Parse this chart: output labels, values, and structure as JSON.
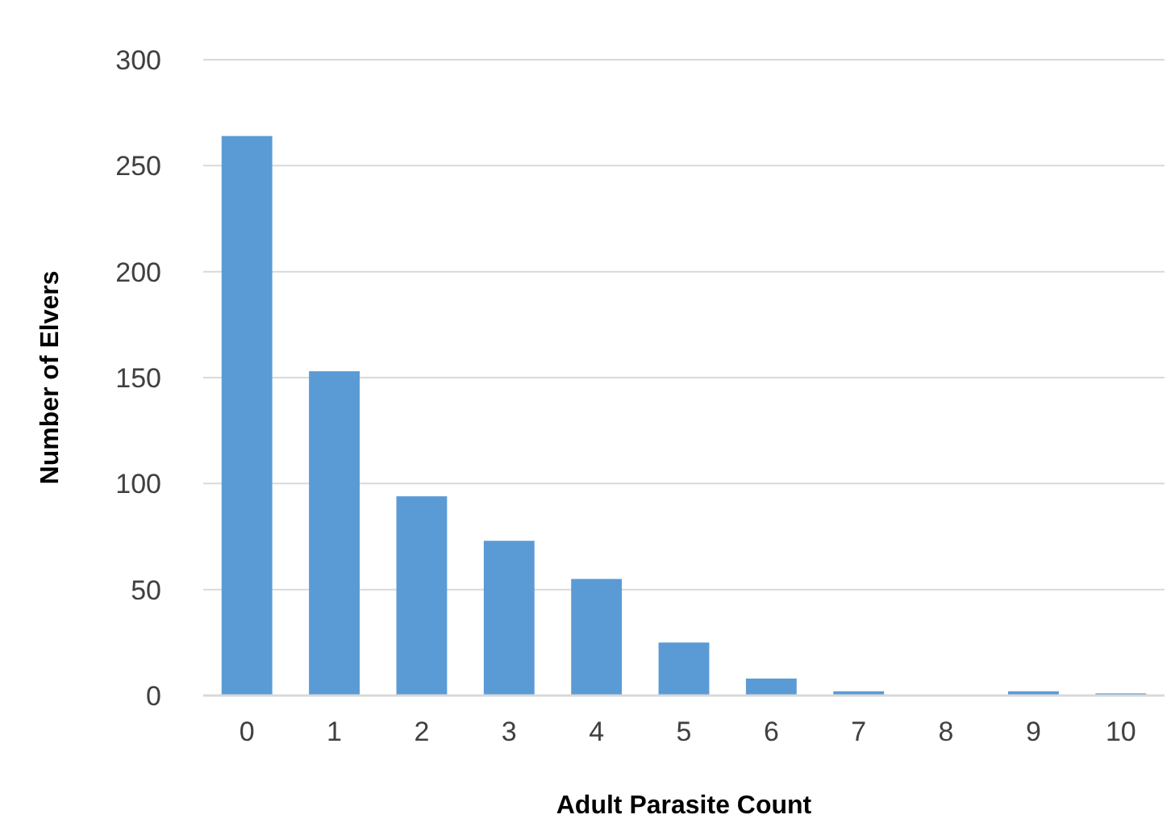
{
  "chart_data": {
    "type": "bar",
    "xlabel": "Adult Parasite Count",
    "ylabel": "Number of Elvers",
    "categories": [
      "0",
      "1",
      "2",
      "3",
      "4",
      "5",
      "6",
      "7",
      "8",
      "9",
      "10"
    ],
    "values": [
      264,
      153,
      94,
      73,
      55,
      25,
      8,
      2,
      0,
      2,
      1
    ],
    "color": "#5b9bd5",
    "ylim": [
      0,
      300
    ],
    "yticks": [
      0,
      50,
      100,
      150,
      200,
      250,
      300
    ],
    "grid": "y"
  }
}
